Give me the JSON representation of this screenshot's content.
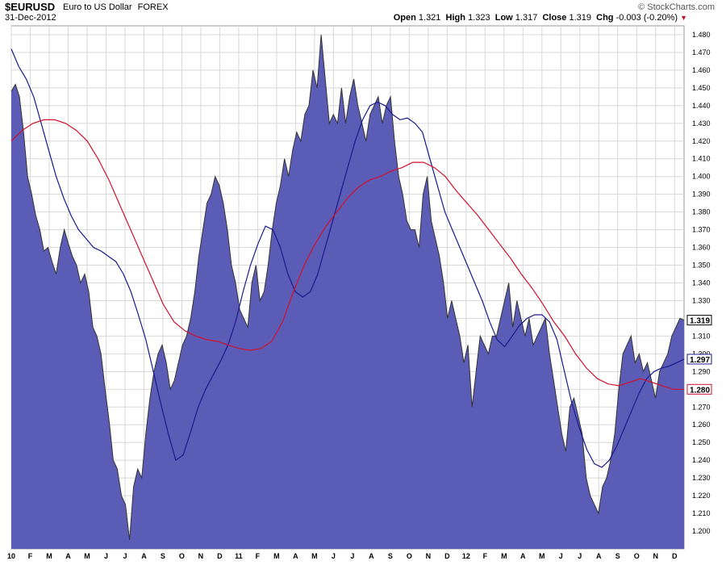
{
  "header": {
    "symbol": "$EURUSD",
    "description": "Euro to US Dollar",
    "exchange": "FOREX",
    "date": "31-Dec-2012",
    "watermark": "© StockCharts.com",
    "open_label": "Open",
    "open_value": "1.321",
    "high_label": "High",
    "high_value": "1.323",
    "low_label": "Low",
    "low_value": "1.317",
    "close_label": "Close",
    "close_value": "1.319",
    "chg_label": "Chg",
    "chg_value": "-0.003 (-0.20%)"
  },
  "chart_data": {
    "type": "area",
    "ylim": [
      1.19,
      1.485
    ],
    "yticks": [
      "1.200",
      "1.210",
      "1.220",
      "1.230",
      "1.240",
      "1.250",
      "1.260",
      "1.270",
      "1.280",
      "1.290",
      "1.300",
      "1.310",
      "1.320",
      "1.330",
      "1.340",
      "1.350",
      "1.360",
      "1.370",
      "1.380",
      "1.390",
      "1.400",
      "1.410",
      "1.420",
      "1.430",
      "1.440",
      "1.450",
      "1.460",
      "1.470",
      "1.480"
    ],
    "xticks": [
      "10",
      "F",
      "M",
      "A",
      "M",
      "J",
      "J",
      "A",
      "S",
      "O",
      "N",
      "D",
      "11",
      "F",
      "M",
      "A",
      "M",
      "J",
      "J",
      "A",
      "S",
      "O",
      "N",
      "D",
      "12",
      "F",
      "M",
      "A",
      "M",
      "J",
      "J",
      "A",
      "S",
      "O",
      "N",
      "D"
    ],
    "grid": true,
    "colors": {
      "area": "#5b5cb5",
      "ma_short": "#1a1a8c",
      "ma_long": "#d0112e",
      "grid": "#d8d8d8"
    },
    "value_tags": [
      {
        "text": "1.319",
        "value": 1.319,
        "color": "#000000"
      },
      {
        "text": "1.297",
        "value": 1.297,
        "color": "#1a1a8c"
      },
      {
        "text": "1.280",
        "value": 1.28,
        "color": "#d0112e"
      }
    ],
    "series": [
      {
        "values": [
          1.448,
          1.452,
          1.445,
          1.425,
          1.4,
          1.39,
          1.378,
          1.37,
          1.358,
          1.36,
          1.352,
          1.345,
          1.36,
          1.37,
          1.362,
          1.355,
          1.35,
          1.34,
          1.345,
          1.335,
          1.315,
          1.31,
          1.3,
          1.28,
          1.262,
          1.24,
          1.235,
          1.22,
          1.215,
          1.195,
          1.225,
          1.235,
          1.23,
          1.255,
          1.275,
          1.29,
          1.3,
          1.305,
          1.295,
          1.28,
          1.285,
          1.295,
          1.305,
          1.31,
          1.32,
          1.335,
          1.355,
          1.37,
          1.385,
          1.39,
          1.4,
          1.395,
          1.385,
          1.37,
          1.35,
          1.34,
          1.325,
          1.32,
          1.315,
          1.34,
          1.35,
          1.33,
          1.335,
          1.35,
          1.37,
          1.385,
          1.395,
          1.41,
          1.4,
          1.415,
          1.425,
          1.42,
          1.435,
          1.44,
          1.46,
          1.45,
          1.48,
          1.455,
          1.43,
          1.435,
          1.43,
          1.45,
          1.43,
          1.445,
          1.455,
          1.44,
          1.43,
          1.42,
          1.435,
          1.44,
          1.445,
          1.43,
          1.44,
          1.445,
          1.42,
          1.4,
          1.39,
          1.375,
          1.37,
          1.37,
          1.36,
          1.39,
          1.4,
          1.375,
          1.365,
          1.355,
          1.34,
          1.32,
          1.33,
          1.32,
          1.31,
          1.295,
          1.305,
          1.27,
          1.29,
          1.31,
          1.305,
          1.3,
          1.31,
          1.31,
          1.32,
          1.33,
          1.34,
          1.315,
          1.33,
          1.32,
          1.31,
          1.32,
          1.305,
          1.31,
          1.315,
          1.32,
          1.3,
          1.285,
          1.27,
          1.255,
          1.245,
          1.27,
          1.275,
          1.265,
          1.255,
          1.23,
          1.22,
          1.215,
          1.21,
          1.225,
          1.23,
          1.24,
          1.255,
          1.28,
          1.3,
          1.305,
          1.31,
          1.295,
          1.3,
          1.29,
          1.295,
          1.285,
          1.275,
          1.29,
          1.295,
          1.3,
          1.31,
          1.315,
          1.32,
          1.319
        ],
        "type": "area"
      },
      {
        "values": [
          1.472,
          1.462,
          1.455,
          1.445,
          1.43,
          1.415,
          1.4,
          1.388,
          1.378,
          1.37,
          1.365,
          1.36,
          1.358,
          1.355,
          1.352,
          1.345,
          1.335,
          1.322,
          1.308,
          1.29,
          1.272,
          1.255,
          1.24,
          1.243,
          1.256,
          1.27,
          1.28,
          1.288,
          1.296,
          1.305,
          1.318,
          1.335,
          1.35,
          1.362,
          1.372,
          1.37,
          1.36,
          1.345,
          1.335,
          1.332,
          1.335,
          1.345,
          1.36,
          1.375,
          1.39,
          1.405,
          1.42,
          1.432,
          1.44,
          1.442,
          1.44,
          1.435,
          1.432,
          1.433,
          1.43,
          1.425,
          1.41,
          1.395,
          1.38,
          1.37,
          1.36,
          1.35,
          1.34,
          1.33,
          1.318,
          1.308,
          1.304,
          1.31,
          1.316,
          1.32,
          1.322,
          1.322,
          1.318,
          1.308,
          1.29,
          1.272,
          1.258,
          1.246,
          1.238,
          1.236,
          1.24,
          1.248,
          1.258,
          1.268,
          1.278,
          1.286,
          1.29,
          1.292,
          1.293,
          1.295,
          1.297
        ],
        "type": "line"
      },
      {
        "values": [
          1.42,
          1.426,
          1.43,
          1.432,
          1.432,
          1.43,
          1.426,
          1.42,
          1.41,
          1.398,
          1.384,
          1.37,
          1.356,
          1.342,
          1.328,
          1.318,
          1.313,
          1.31,
          1.308,
          1.307,
          1.305,
          1.303,
          1.302,
          1.303,
          1.307,
          1.318,
          1.335,
          1.35,
          1.362,
          1.372,
          1.38,
          1.388,
          1.394,
          1.398,
          1.4,
          1.403,
          1.405,
          1.408,
          1.408,
          1.405,
          1.4,
          1.392,
          1.385,
          1.378,
          1.37,
          1.362,
          1.354,
          1.345,
          1.337,
          1.328,
          1.318,
          1.31,
          1.3,
          1.292,
          1.286,
          1.283,
          1.282,
          1.284,
          1.286,
          1.284,
          1.282,
          1.28,
          1.28
        ],
        "type": "line"
      }
    ]
  }
}
